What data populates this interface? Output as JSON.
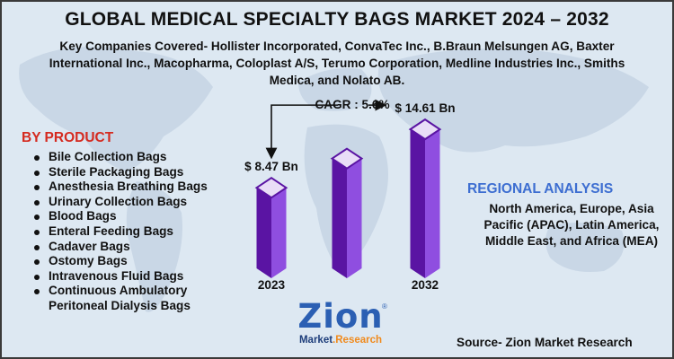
{
  "title": "GLOBAL MEDICAL SPECIALTY BAGS MARKET 2024 – 2032",
  "subtitle": "Key Companies Covered- Hollister Incorporated, ConvaTec Inc., B.Braun Melsungen AG, Baxter International Inc., Macopharma, Coloplast A/S, Terumo Corporation, Medline Industries Inc., Smiths Medica, and Nolato AB.",
  "by_product": {
    "heading": "BY PRODUCT",
    "items": [
      "Bile Collection Bags",
      "Sterile Packaging Bags",
      "Anesthesia Breathing Bags",
      "Urinary Collection Bags",
      "Blood Bags",
      "Enteral Feeding Bags",
      "Cadaver Bags",
      "Ostomy Bags",
      "Intravenous Fluid Bags",
      "Continuous Ambulatory Peritoneal Dialysis Bags"
    ]
  },
  "regional": {
    "heading": "REGIONAL ANALYSIS",
    "text": "North America, Europe, Asia Pacific (APAC), Latin America, Middle East, and Africa (MEA)"
  },
  "logo": {
    "word": "Zion",
    "tag_part1": "Market",
    "tag_part2": ".Research",
    "reg": "®"
  },
  "source": "Source- Zion Market Research",
  "colors": {
    "bar_front": "#5a14a3",
    "bar_side": "#8f4ee0",
    "bar_top": "#e9ddf7",
    "heading_red": "#d52a1f",
    "heading_blue": "#3d6ed1"
  },
  "chart_data": {
    "type": "bar",
    "categories": [
      "2023",
      "",
      "2032"
    ],
    "values": [
      8.47,
      null,
      14.61
    ],
    "value_labels": [
      "$ 8.47 Bn",
      "",
      "$ 14.61 Bn"
    ],
    "cagr_label": "CAGR : 5.6%"
  }
}
